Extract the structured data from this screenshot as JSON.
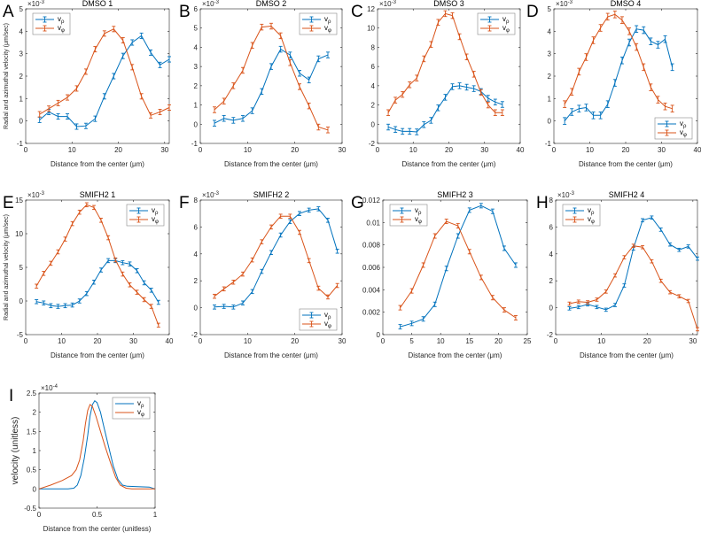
{
  "colors": {
    "v_rho": "#0072BD",
    "v_phi": "#D95319",
    "axis": "#262626"
  },
  "chart_data": [
    {
      "letter": "A",
      "type": "line",
      "title": "DMSO 1",
      "xlabel": "Distance from the center (μm)",
      "ylabel": "Radial and azimuthal velocity (μm/sec)",
      "exponent": "×10",
      "exp_power": "-3",
      "xlim": [
        0,
        31
      ],
      "ylim": [
        -1,
        5
      ],
      "xticks": [
        0,
        10,
        20,
        30
      ],
      "yticks": [
        -1,
        0,
        1,
        2,
        3,
        4,
        5
      ],
      "legend": "top-left",
      "err": 0.12,
      "x": [
        3,
        5,
        7,
        9,
        11,
        13,
        15,
        17,
        19,
        21,
        23,
        25,
        27,
        29,
        31
      ],
      "series": [
        {
          "name": "v",
          "sub": "ρ",
          "values": [
            0.05,
            0.4,
            0.2,
            0.2,
            -0.25,
            -0.22,
            0.1,
            1.1,
            2.0,
            2.9,
            3.5,
            3.8,
            3.05,
            2.5,
            2.75
          ]
        },
        {
          "name": "v",
          "sub": "φ",
          "values": [
            0.3,
            0.55,
            0.8,
            1.05,
            1.45,
            2.2,
            3.2,
            3.9,
            4.1,
            3.6,
            2.4,
            1.1,
            0.25,
            0.4,
            0.6
          ]
        }
      ]
    },
    {
      "letter": "B",
      "type": "line",
      "title": "DMSO 2",
      "xlabel": "Distance from the center (μm)",
      "ylabel": "",
      "exponent": "×10",
      "exp_power": "-3",
      "xlim": [
        0,
        30
      ],
      "ylim": [
        -1,
        6
      ],
      "xticks": [
        0,
        10,
        20,
        30
      ],
      "yticks": [
        -1,
        0,
        1,
        2,
        3,
        4,
        5,
        6
      ],
      "legend": "top-right",
      "err": 0.15,
      "x": [
        3,
        5,
        7,
        9,
        11,
        13,
        15,
        17,
        19,
        21,
        23,
        25,
        27
      ],
      "series": [
        {
          "name": "v",
          "sub": "ρ",
          "values": [
            0.05,
            0.3,
            0.2,
            0.3,
            0.7,
            1.7,
            3.0,
            3.9,
            3.6,
            2.65,
            2.3,
            3.4,
            3.6
          ]
        },
        {
          "name": "v",
          "sub": "φ",
          "values": [
            0.75,
            1.2,
            2.0,
            2.8,
            4.1,
            5.05,
            5.1,
            4.6,
            3.2,
            1.95,
            0.95,
            -0.15,
            -0.3
          ]
        }
      ]
    },
    {
      "letter": "C",
      "type": "line",
      "title": "DMSO 3",
      "xlabel": "Distance from the center (μm)",
      "ylabel": "",
      "exponent": "×10",
      "exp_power": "-3",
      "xlim": [
        0,
        40
      ],
      "ylim": [
        -2,
        12
      ],
      "xticks": [
        0,
        10,
        20,
        30,
        40
      ],
      "yticks": [
        -2,
        0,
        2,
        4,
        6,
        8,
        10,
        12
      ],
      "legend": "top-right",
      "err": 0.3,
      "x": [
        3,
        5,
        7,
        9,
        11,
        13,
        15,
        17,
        19,
        21,
        23,
        25,
        27,
        29,
        31,
        33,
        35
      ],
      "series": [
        {
          "name": "v",
          "sub": "ρ",
          "values": [
            -0.3,
            -0.55,
            -0.75,
            -0.75,
            -0.8,
            -0.05,
            0.4,
            1.7,
            2.8,
            3.9,
            4.0,
            3.85,
            3.7,
            3.4,
            2.7,
            2.3,
            2.05
          ]
        },
        {
          "name": "v",
          "sub": "φ",
          "values": [
            1.2,
            2.5,
            3.1,
            4.1,
            4.8,
            6.8,
            8.3,
            10.6,
            11.5,
            11.3,
            9.1,
            7.0,
            5.2,
            3.3,
            2.0,
            1.2,
            1.2
          ]
        }
      ]
    },
    {
      "letter": "D",
      "type": "line",
      "title": "DMSO 4",
      "xlabel": "Distance from the center (μm)",
      "ylabel": "",
      "exponent": "×10",
      "exp_power": "-3",
      "xlim": [
        0,
        40
      ],
      "ylim": [
        -1,
        5
      ],
      "xticks": [
        0,
        10,
        20,
        30,
        40
      ],
      "yticks": [
        -1,
        0,
        1,
        2,
        3,
        4,
        5
      ],
      "legend": "bottom-right",
      "err": 0.15,
      "x": [
        3,
        5,
        7,
        9,
        11,
        13,
        15,
        17,
        19,
        21,
        23,
        25,
        27,
        29,
        31,
        33
      ],
      "series": [
        {
          "name": "v",
          "sub": "ρ",
          "values": [
            0,
            0.4,
            0.55,
            0.6,
            0.25,
            0.25,
            0.75,
            1.7,
            2.7,
            3.5,
            4.1,
            4.05,
            3.55,
            3.4,
            3.65,
            2.4
          ]
        },
        {
          "name": "v",
          "sub": "φ",
          "values": [
            0.75,
            1.3,
            2.2,
            2.85,
            3.6,
            4.15,
            4.65,
            4.75,
            4.5,
            4.0,
            3.3,
            2.4,
            1.5,
            0.95,
            0.65,
            0.55
          ]
        }
      ]
    },
    {
      "letter": "E",
      "type": "line",
      "title": "SMIFH2 1",
      "xlabel": "Distance from the center (μm)",
      "ylabel": "Radial and azimuthal velocity (μm/sec)",
      "exponent": "×10",
      "exp_power": "-3",
      "xlim": [
        0,
        40
      ],
      "ylim": [
        -5,
        15
      ],
      "xticks": [
        0,
        10,
        20,
        30,
        40
      ],
      "yticks": [
        -5,
        0,
        5,
        10,
        15
      ],
      "legend": "top-right",
      "err": 0.3,
      "x": [
        3,
        5,
        7,
        9,
        11,
        13,
        15,
        17,
        19,
        21,
        23,
        25,
        27,
        29,
        31,
        33,
        35,
        37
      ],
      "series": [
        {
          "name": "v",
          "sub": "ρ",
          "values": [
            -0.1,
            -0.3,
            -0.7,
            -0.8,
            -0.7,
            -0.6,
            0,
            1.1,
            2.8,
            4.6,
            6.0,
            6.0,
            5.7,
            5.5,
            4.5,
            2.7,
            1.6,
            -0.2
          ]
        },
        {
          "name": "v",
          "sub": "φ",
          "values": [
            2.2,
            4.1,
            5.6,
            7.3,
            9.2,
            11.5,
            13.2,
            14.3,
            13.9,
            12.0,
            9.4,
            6.1,
            4.0,
            2.4,
            1.3,
            0.2,
            -0.8,
            -3.6
          ]
        }
      ]
    },
    {
      "letter": "F",
      "type": "line",
      "title": "SMIFH2 2",
      "xlabel": "Distance from the center (μm)",
      "ylabel": "",
      "exponent": "×10",
      "exp_power": "-3",
      "xlim": [
        0,
        30
      ],
      "ylim": [
        -2,
        8
      ],
      "xticks": [
        0,
        10,
        20,
        30
      ],
      "yticks": [
        -2,
        0,
        2,
        4,
        6,
        8
      ],
      "legend": "bottom-right",
      "err": 0.15,
      "x": [
        3,
        5,
        7,
        9,
        11,
        13,
        15,
        17,
        19,
        21,
        23,
        25,
        27,
        29
      ],
      "series": [
        {
          "name": "v",
          "sub": "ρ",
          "values": [
            0.05,
            0.1,
            0.05,
            0.35,
            1.2,
            2.7,
            4.1,
            5.4,
            6.4,
            7.0,
            7.25,
            7.35,
            6.5,
            4.2
          ]
        },
        {
          "name": "v",
          "sub": "φ",
          "values": [
            0.85,
            1.4,
            1.9,
            2.5,
            3.55,
            4.9,
            6.0,
            6.8,
            6.8,
            5.6,
            3.5,
            1.45,
            0.8,
            1.65
          ]
        }
      ]
    },
    {
      "letter": "G",
      "type": "line",
      "title": "SMIFH2 3",
      "xlabel": "Distance from the center (μm)",
      "ylabel": "",
      "exponent": "",
      "exp_power": "",
      "xlim": [
        0,
        25
      ],
      "ylim": [
        0,
        0.012
      ],
      "xticks": [
        0,
        5,
        10,
        15,
        20,
        25
      ],
      "yticks": [
        0,
        0.002,
        0.004,
        0.006,
        0.008,
        0.01,
        0.012
      ],
      "legend": "top-left",
      "err": 0.0002,
      "x": [
        3,
        5,
        7,
        9,
        11,
        13,
        15,
        17,
        19,
        21,
        23
      ],
      "series": [
        {
          "name": "v",
          "sub": "ρ",
          "values": [
            0.0007,
            0.001,
            0.0014,
            0.0027,
            0.0059,
            0.0088,
            0.0111,
            0.0115,
            0.011,
            0.0077,
            0.0062
          ]
        },
        {
          "name": "v",
          "sub": "φ",
          "values": [
            0.0024,
            0.0039,
            0.0062,
            0.0088,
            0.0101,
            0.0097,
            0.0074,
            0.0051,
            0.0033,
            0.0022,
            0.0015
          ]
        }
      ]
    },
    {
      "letter": "H",
      "type": "line",
      "title": "SMIFH2 4",
      "xlabel": "Distance from the center (μm)",
      "ylabel": "",
      "exponent": "×10",
      "exp_power": "-3",
      "xlim": [
        0,
        31
      ],
      "ylim": [
        -2,
        8
      ],
      "xticks": [
        0,
        10,
        20,
        30
      ],
      "yticks": [
        -2,
        0,
        2,
        4,
        6,
        8
      ],
      "legend": "top-left",
      "err": 0.12,
      "x": [
        3,
        5,
        7,
        9,
        11,
        13,
        15,
        17,
        19,
        21,
        23,
        25,
        27,
        29,
        31
      ],
      "series": [
        {
          "name": "v",
          "sub": "ρ",
          "values": [
            -0.05,
            0.05,
            0.25,
            0.05,
            -0.15,
            0.2,
            1.65,
            4.4,
            6.5,
            6.7,
            5.8,
            4.7,
            4.3,
            4.55,
            3.65
          ]
        },
        {
          "name": "v",
          "sub": "φ",
          "values": [
            0.3,
            0.45,
            0.4,
            0.6,
            1.2,
            2.4,
            3.75,
            4.6,
            4.5,
            3.45,
            2.0,
            1.15,
            0.85,
            0.5,
            -1.6
          ]
        }
      ]
    },
    {
      "letter": "I",
      "type": "line",
      "title": "",
      "xlabel": "Distance from the center (unitless)",
      "ylabel": "velocity (unitless)",
      "exponent": "×10",
      "exp_power": "-4",
      "xlim": [
        0,
        1
      ],
      "ylim": [
        -0.5,
        2.5
      ],
      "xticks": [
        0,
        0.5,
        1
      ],
      "yticks": [
        -0.5,
        0,
        0.5,
        1,
        1.5,
        2,
        2.5
      ],
      "legend": "top-right",
      "err": 0,
      "series": [
        {
          "name": "v",
          "sub": "ρ",
          "x": [
            0,
            0.25,
            0.3,
            0.33,
            0.36,
            0.39,
            0.42,
            0.44,
            0.46,
            0.48,
            0.5,
            0.53,
            0.56,
            0.6,
            0.64,
            0.68,
            0.72,
            0.76,
            0.85,
            0.95,
            1
          ],
          "values": [
            0,
            0,
            0.02,
            0.1,
            0.35,
            0.8,
            1.4,
            1.9,
            2.2,
            2.3,
            2.25,
            2.0,
            1.6,
            1.1,
            0.6,
            0.25,
            0.1,
            0.07,
            0.06,
            0.05,
            0
          ]
        },
        {
          "name": "v",
          "sub": "φ",
          "x": [
            0,
            0.1,
            0.2,
            0.28,
            0.32,
            0.35,
            0.38,
            0.4,
            0.42,
            0.44,
            0.46,
            0.49,
            0.53,
            0.57,
            0.62,
            0.66,
            0.7,
            0.75,
            0.8,
            1
          ],
          "values": [
            0,
            0.1,
            0.22,
            0.35,
            0.5,
            0.75,
            1.25,
            1.7,
            2.05,
            2.2,
            2.15,
            1.9,
            1.5,
            1.1,
            0.65,
            0.3,
            0.1,
            0.02,
            0,
            0
          ]
        }
      ]
    }
  ]
}
